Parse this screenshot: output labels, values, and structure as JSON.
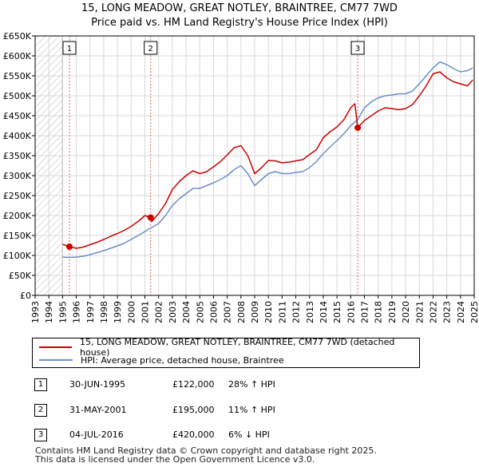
{
  "chart_data": {
    "type": "line",
    "title": "15, LONG MEADOW, GREAT NOTLEY, BRAINTREE, CM77 7WD",
    "subtitle": "Price paid vs. HM Land Registry's House Price Index (HPI)",
    "xlabel": "",
    "ylabel": "",
    "xlim": [
      1993,
      2025
    ],
    "ylim": [
      0,
      650000
    ],
    "x_ticks": [
      1993,
      1994,
      1995,
      1996,
      1997,
      1998,
      1999,
      2000,
      2001,
      2002,
      2003,
      2004,
      2005,
      2006,
      2007,
      2008,
      2009,
      2010,
      2011,
      2012,
      2013,
      2014,
      2015,
      2016,
      2017,
      2018,
      2019,
      2020,
      2021,
      2022,
      2023,
      2024,
      2025
    ],
    "y_ticks": [
      0,
      50000,
      100000,
      150000,
      200000,
      250000,
      300000,
      350000,
      400000,
      450000,
      500000,
      550000,
      600000,
      650000
    ],
    "y_tick_labels": [
      "£0",
      "£50K",
      "£100K",
      "£150K",
      "£200K",
      "£250K",
      "£300K",
      "£350K",
      "£400K",
      "£450K",
      "£500K",
      "£550K",
      "£600K",
      "£650K"
    ],
    "grid": true,
    "hatch_until": 1995.0,
    "series": [
      {
        "name": "15, LONG MEADOW, GREAT NOTLEY, BRAINTREE, CM77 7WD (detached house)",
        "color": "#cc0000",
        "x": [
          1995.0,
          1995.5,
          1996.0,
          1996.5,
          1997.0,
          1997.5,
          1998.0,
          1998.5,
          1999.0,
          1999.5,
          2000.0,
          2000.5,
          2001.0,
          2001.42,
          2001.5,
          2002.0,
          2002.5,
          2003.0,
          2003.5,
          2004.0,
          2004.5,
          2005.0,
          2005.5,
          2006.0,
          2006.5,
          2007.0,
          2007.5,
          2008.0,
          2008.5,
          2009.0,
          2009.5,
          2010.0,
          2010.5,
          2011.0,
          2011.5,
          2012.0,
          2012.5,
          2013.0,
          2013.5,
          2014.0,
          2014.5,
          2015.0,
          2015.5,
          2016.0,
          2016.3,
          2016.51,
          2017.0,
          2017.5,
          2018.0,
          2018.5,
          2019.0,
          2019.5,
          2020.0,
          2020.5,
          2021.0,
          2021.5,
          2022.0,
          2022.5,
          2023.0,
          2023.5,
          2024.0,
          2024.5,
          2024.9
        ],
        "y": [
          128000,
          122000,
          118000,
          121000,
          127000,
          133000,
          140000,
          148000,
          155000,
          163000,
          173000,
          185000,
          200000,
          195000,
          185000,
          205000,
          230000,
          265000,
          285000,
          300000,
          312000,
          305000,
          310000,
          322000,
          335000,
          352000,
          370000,
          375000,
          350000,
          305000,
          320000,
          338000,
          337000,
          332000,
          334000,
          337000,
          340000,
          353000,
          365000,
          395000,
          410000,
          422000,
          440000,
          470000,
          480000,
          420000,
          438000,
          450000,
          462000,
          470000,
          468000,
          465000,
          468000,
          478000,
          500000,
          525000,
          555000,
          560000,
          545000,
          535000,
          530000,
          525000,
          540000
        ]
      },
      {
        "name": "HPI: Average price, detached house, Braintree",
        "color": "#6a8fc8",
        "x": [
          1995.0,
          1995.5,
          1996.0,
          1996.5,
          1997.0,
          1997.5,
          1998.0,
          1998.5,
          1999.0,
          1999.5,
          2000.0,
          2000.5,
          2001.0,
          2001.5,
          2002.0,
          2002.5,
          2003.0,
          2003.5,
          2004.0,
          2004.5,
          2005.0,
          2005.5,
          2006.0,
          2006.5,
          2007.0,
          2007.5,
          2008.0,
          2008.5,
          2009.0,
          2009.5,
          2010.0,
          2010.5,
          2011.0,
          2011.5,
          2012.0,
          2012.5,
          2013.0,
          2013.5,
          2014.0,
          2014.5,
          2015.0,
          2015.5,
          2016.0,
          2016.5,
          2017.0,
          2017.5,
          2018.0,
          2018.5,
          2019.0,
          2019.5,
          2020.0,
          2020.5,
          2021.0,
          2021.5,
          2022.0,
          2022.5,
          2023.0,
          2023.5,
          2024.0,
          2024.5,
          2024.9
        ],
        "y": [
          96000,
          95000,
          96000,
          98000,
          102000,
          107000,
          112000,
          118000,
          124000,
          131000,
          140000,
          150000,
          160000,
          170000,
          180000,
          200000,
          225000,
          242000,
          255000,
          268000,
          268000,
          275000,
          282000,
          290000,
          300000,
          315000,
          325000,
          305000,
          275000,
          290000,
          305000,
          310000,
          305000,
          305000,
          308000,
          310000,
          320000,
          335000,
          355000,
          372000,
          388000,
          405000,
          425000,
          440000,
          470000,
          485000,
          495000,
          500000,
          502000,
          505000,
          505000,
          512000,
          530000,
          550000,
          570000,
          585000,
          578000,
          568000,
          560000,
          563000,
          570000
        ]
      }
    ],
    "transactions": [
      {
        "marker": "1",
        "x": 1995.5,
        "price": 122000
      },
      {
        "marker": "2",
        "x": 2001.42,
        "price": 195000
      },
      {
        "marker": "3",
        "x": 2016.51,
        "price": 420000
      }
    ]
  },
  "legend": {
    "property_label": "15, LONG MEADOW, GREAT NOTLEY, BRAINTREE, CM77 7WD (detached house)",
    "hpi_label": "HPI: Average price, detached house, Braintree"
  },
  "table": [
    {
      "marker": "1",
      "date": "30-JUN-1995",
      "price": "£122,000",
      "hpi": "28% ↑ HPI"
    },
    {
      "marker": "2",
      "date": "31-MAY-2001",
      "price": "£195,000",
      "hpi": "11% ↑ HPI"
    },
    {
      "marker": "3",
      "date": "04-JUL-2016",
      "price": "£420,000",
      "hpi": "6% ↓ HPI"
    }
  ],
  "footer": {
    "line1": "Contains HM Land Registry data © Crown copyright and database right 2025.",
    "line2": "This data is licensed under the Open Government Licence v3.0."
  }
}
